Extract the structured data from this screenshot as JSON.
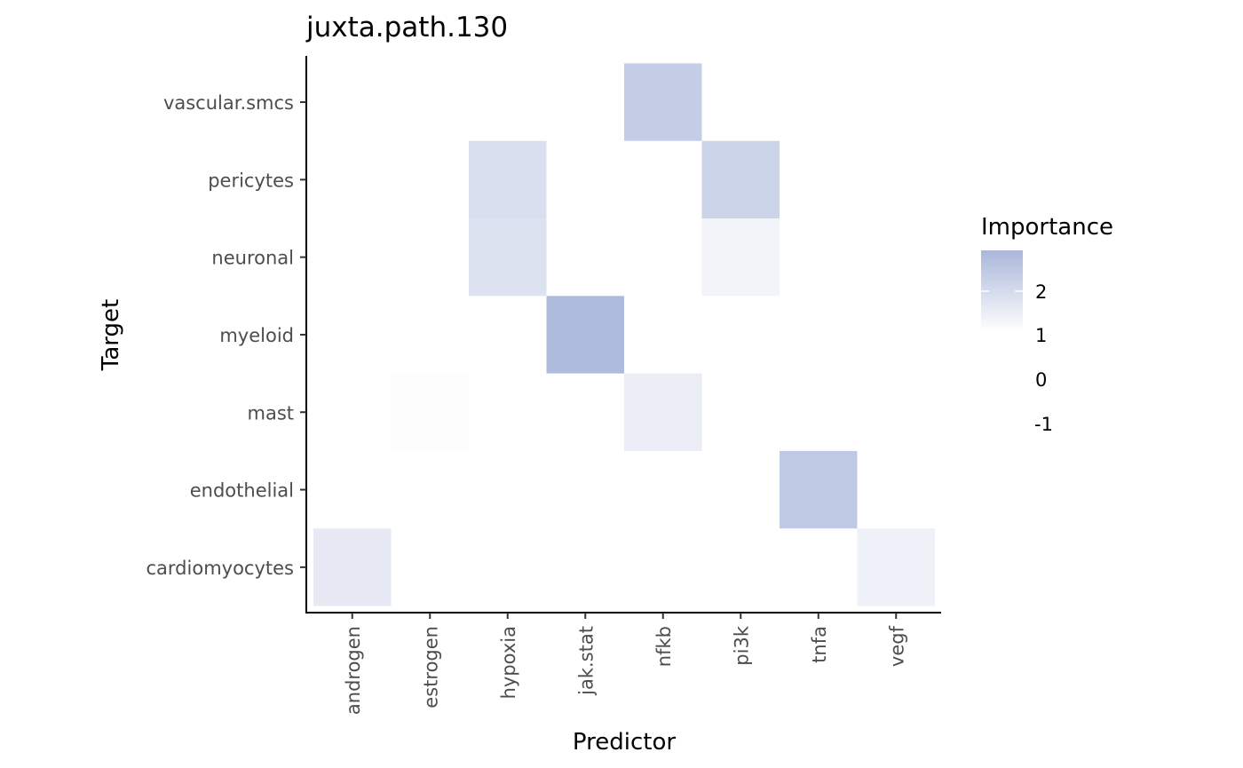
{
  "chart_data": {
    "type": "heatmap",
    "title": "juxta.path.130",
    "xlabel": "Predictor",
    "ylabel": "Target",
    "x_categories": [
      "androgen",
      "estrogen",
      "hypoxia",
      "jak.stat",
      "nfkb",
      "pi3k",
      "tnfa",
      "vegf"
    ],
    "y_categories": [
      "cardiomyocytes",
      "endothelial",
      "mast",
      "myeloid",
      "neuronal",
      "pericytes",
      "vascular.smcs"
    ],
    "cells": [
      {
        "x": "nfkb",
        "y": "vascular.smcs",
        "value": 2.4
      },
      {
        "x": "hypoxia",
        "y": "pericytes",
        "value": 1.9
      },
      {
        "x": "pi3k",
        "y": "pericytes",
        "value": 2.2
      },
      {
        "x": "hypoxia",
        "y": "neuronal",
        "value": 1.8
      },
      {
        "x": "pi3k",
        "y": "neuronal",
        "value": 1.3
      },
      {
        "x": "jak.stat",
        "y": "myeloid",
        "value": 2.9
      },
      {
        "x": "estrogen",
        "y": "mast",
        "value": 1.05
      },
      {
        "x": "nfkb",
        "y": "mast",
        "value": 1.5
      },
      {
        "x": "tnfa",
        "y": "endothelial",
        "value": 2.5
      },
      {
        "x": "androgen",
        "y": "cardiomyocytes",
        "value": 1.6
      },
      {
        "x": "vegf",
        "y": "cardiomyocytes",
        "value": 1.4
      }
    ],
    "legend": {
      "title": "Importance",
      "breaks": [
        2,
        1,
        0,
        -1
      ],
      "color_low": "#ffffff",
      "color_high": "#aab7da",
      "range": [
        1,
        3
      ]
    },
    "grid": false,
    "legend_position": "right"
  }
}
